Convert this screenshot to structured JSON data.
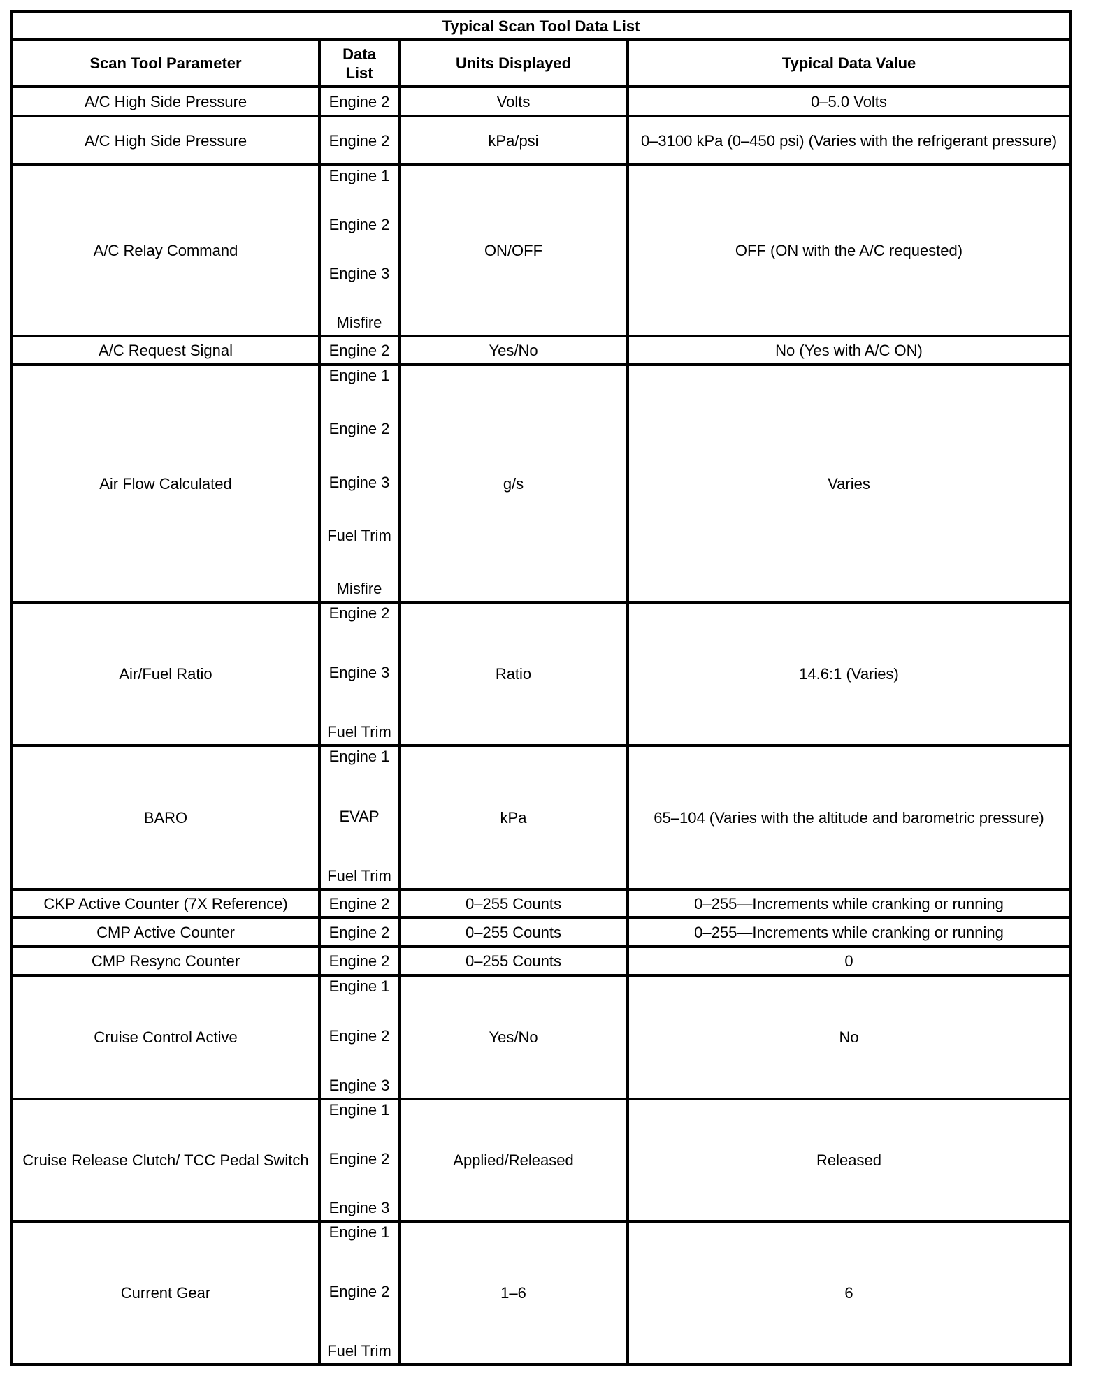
{
  "title": "Typical Scan Tool Data List",
  "headers": [
    "Scan Tool Parameter",
    "Data List",
    "Units Displayed",
    "Typical Data Value"
  ],
  "rows": [
    {
      "parameter": "A/C High Side Pressure",
      "data_list": [
        "Engine 2"
      ],
      "units": "Volts",
      "value": "0–5.0 Volts"
    },
    {
      "parameter": "A/C High Side Pressure",
      "data_list": [
        "Engine 2"
      ],
      "units": "kPa/psi",
      "value": "0–3100 kPa (0–450 psi) (Varies with the refrigerant pressure)"
    },
    {
      "parameter": "A/C Relay Command",
      "data_list": [
        "Engine 1",
        "Engine 2",
        "Engine 3",
        "Misfire"
      ],
      "units": "ON/OFF",
      "value": "OFF (ON with the A/C requested)"
    },
    {
      "parameter": "A/C Request Signal",
      "data_list": [
        "Engine 2"
      ],
      "units": "Yes/No",
      "value": "No (Yes with A/C ON)"
    },
    {
      "parameter": "Air Flow Calculated",
      "data_list": [
        "Engine 1",
        "Engine 2",
        "Engine 3",
        "Fuel Trim",
        "Misfire"
      ],
      "units": "g/s",
      "value": "Varies"
    },
    {
      "parameter": "Air/Fuel Ratio",
      "data_list": [
        "Engine 2",
        "Engine 3",
        "Fuel Trim"
      ],
      "units": "Ratio",
      "value": "14.6:1 (Varies)"
    },
    {
      "parameter": "BARO",
      "data_list": [
        "Engine 1",
        "EVAP",
        "Fuel Trim"
      ],
      "units": "kPa",
      "value": "65–104 (Varies with the altitude and barometric pressure)"
    },
    {
      "parameter": "CKP Active Counter (7X Reference)",
      "data_list": [
        "Engine 2"
      ],
      "units": "0–255 Counts",
      "value": "0–255—Increments while cranking or running"
    },
    {
      "parameter": "CMP Active Counter",
      "data_list": [
        "Engine 2"
      ],
      "units": "0–255 Counts",
      "value": "0–255—Increments while cranking or running"
    },
    {
      "parameter": "CMP Resync Counter",
      "data_list": [
        "Engine 2"
      ],
      "units": "0–255 Counts",
      "value": "0"
    },
    {
      "parameter": "Cruise Control Active",
      "data_list": [
        "Engine 1",
        "Engine 2",
        "Engine 3"
      ],
      "units": "Yes/No",
      "value": "No"
    },
    {
      "parameter": "Cruise Release Clutch/ TCC Pedal Switch",
      "data_list": [
        "Engine 1",
        "Engine 2",
        "Engine 3"
      ],
      "units": "Applied/Released",
      "value": "Released"
    },
    {
      "parameter": "Current Gear",
      "data_list": [
        "Engine 1",
        "Engine 2",
        "Fuel Trim"
      ],
      "units": "1–6",
      "value": "6"
    }
  ]
}
